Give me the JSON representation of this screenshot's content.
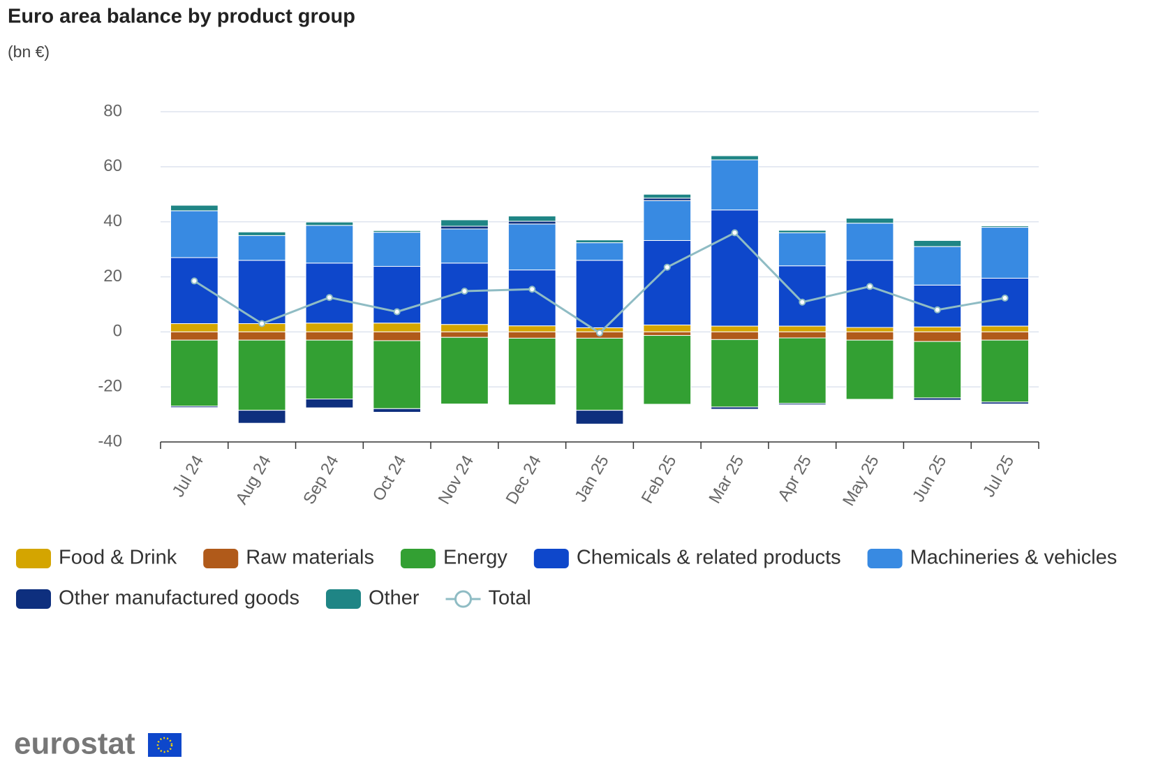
{
  "chart_data": {
    "type": "bar",
    "stacked": true,
    "title": "Euro area balance by product group",
    "subtitle": "(bn €)",
    "categories": [
      "Jul 24",
      "Aug 24",
      "Sep 24",
      "Oct 24",
      "Nov 24",
      "Dec 24",
      "Jan 25",
      "Feb 25",
      "Mar 25",
      "Apr 25",
      "May 25",
      "Jun 25",
      "Jul 25"
    ],
    "ylim": [
      -40,
      80
    ],
    "yticks": [
      -40,
      -20,
      0,
      20,
      40,
      60,
      80
    ],
    "grid": true,
    "series": [
      {
        "name": "Food & Drink",
        "color": "#d4a500",
        "values": [
          3,
          3,
          3.2,
          3.2,
          2.7,
          2.2,
          1.5,
          2.5,
          2.1,
          2.1,
          1.6,
          1.8,
          2.1
        ]
      },
      {
        "name": "Raw materials",
        "color": "#b05a1a",
        "values": [
          -3,
          -3,
          -3,
          -3.2,
          -2,
          -2.3,
          -2.3,
          -1.3,
          -2.8,
          -2.2,
          -3,
          -3.5,
          -3
        ]
      },
      {
        "name": "Energy",
        "color": "#33a033",
        "values": [
          -24,
          -25.5,
          -21.4,
          -24.7,
          -24.2,
          -24.2,
          -26.2,
          -25,
          -24.5,
          -23.8,
          -21.5,
          -20.5,
          -22.5
        ]
      },
      {
        "name": "Chemicals & related products",
        "color": "#0e47cb",
        "values": [
          24,
          23,
          21.8,
          20.6,
          22.3,
          20.3,
          24.5,
          30.7,
          42.2,
          21.9,
          24.4,
          15.2,
          17.4
        ]
      },
      {
        "name": "Machineries & vehicles",
        "color": "#388ae2",
        "values": [
          17,
          9,
          13.7,
          12.4,
          12.4,
          16.7,
          6.4,
          14.5,
          18.2,
          12,
          13.5,
          14,
          18.5
        ]
      },
      {
        "name": "Other manufactured goods",
        "color": "#0e2f7e",
        "values": [
          -0.5,
          -4.7,
          -3.2,
          -1.3,
          1,
          1,
          -5,
          0.9,
          -0.8,
          -0.5,
          0,
          -0.8,
          -0.7
        ]
      },
      {
        "name": "Other",
        "color": "#1f8585",
        "values": [
          2,
          1.3,
          1.2,
          0.6,
          2.3,
          1.9,
          1,
          1.4,
          1.5,
          0.9,
          1.8,
          2.2,
          0.5
        ]
      },
      {
        "name": "Total",
        "type": "line",
        "color": "#8fbcc4",
        "values": [
          18.5,
          3,
          12.5,
          7.3,
          14.8,
          15.5,
          -0.4,
          23.5,
          36,
          10.8,
          16.5,
          8,
          12.3
        ]
      }
    ],
    "logo": "eurostat"
  }
}
